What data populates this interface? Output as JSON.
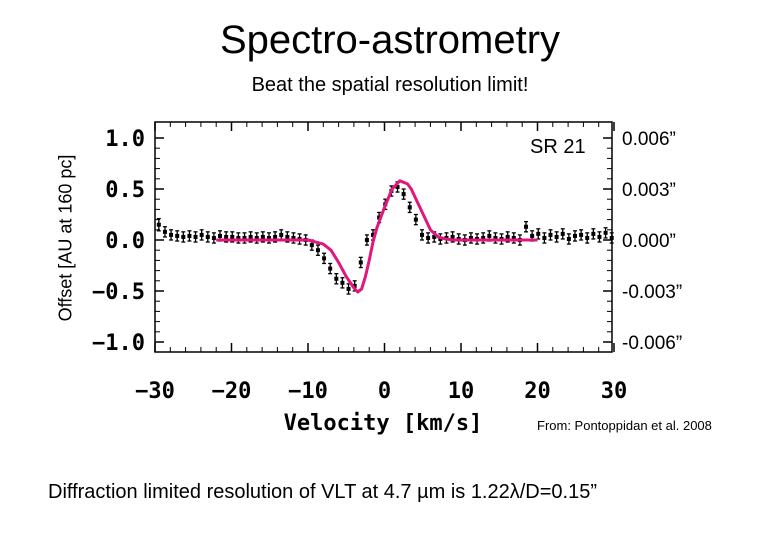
{
  "page": {
    "title": "Spectro-astrometry",
    "subtitle": "Beat the spatial resolution limit!",
    "ylabel": "Offset [AU at 160 pc]",
    "source": "From: Pontoppidan et al. 2008",
    "footer": "Diffraction limited resolution of VLT at 4.7 µm is 1.22λ/D=0.15”"
  },
  "colors": {
    "model": "#e0177c",
    "data": "#000000"
  },
  "chart_data": {
    "type": "scatter",
    "xlabel": "Velocity [km/s]",
    "ylabel": "",
    "xlim": [
      -30,
      30
    ],
    "ylim": [
      -1.1,
      1.1
    ],
    "x_ticks": [
      "−30",
      "−20",
      "−10",
      "0",
      "10",
      "20",
      "30"
    ],
    "x_tick_values": [
      -30,
      -20,
      -10,
      0,
      10,
      20,
      30
    ],
    "y_ticks": [
      "1.0",
      "0.5",
      "0.0",
      "−0.5",
      "−1.0"
    ],
    "y_tick_values": [
      1.0,
      0.5,
      0.0,
      -0.5,
      -1.0
    ],
    "right_ticks": [
      "0.006”",
      "0.003”",
      "0.000”",
      "-0.003”",
      "-0.006”"
    ],
    "right_tick_values": [
      1.0,
      0.5,
      0.0,
      -0.5,
      -1.0
    ],
    "annotation": "SR 21",
    "series": [
      {
        "type": "scatter-errorbar",
        "x": [
          -29.5,
          -28.7,
          -27.9,
          -27.1,
          -26.3,
          -25.5,
          -24.7,
          -23.9,
          -23.1,
          -22.3,
          -21.5,
          -20.7,
          -19.9,
          -19.1,
          -18.3,
          -17.5,
          -16.7,
          -15.9,
          -15.1,
          -14.3,
          -13.5,
          -12.7,
          -11.9,
          -11.1,
          -10.3,
          -9.5,
          -8.7,
          -7.9,
          -7.1,
          -6.3,
          -5.5,
          -4.7,
          -3.9,
          -3.1,
          -2.3,
          -1.5,
          -0.7,
          0.1,
          0.9,
          1.7,
          2.5,
          3.3,
          4.1,
          4.9,
          5.7,
          6.5,
          7.3,
          8.1,
          8.9,
          9.7,
          10.5,
          11.3,
          12.1,
          12.9,
          13.7,
          14.5,
          15.3,
          16.1,
          16.9,
          17.7,
          18.5,
          19.3,
          20.1,
          20.9,
          21.7,
          22.5,
          23.3,
          24.1,
          24.9,
          25.7,
          26.5,
          27.3,
          28.1,
          28.9,
          29.7
        ],
        "y": [
          0.15,
          0.08,
          0.05,
          0.04,
          0.03,
          0.04,
          0.03,
          0.05,
          0.03,
          0.02,
          0.04,
          0.03,
          0.03,
          0.02,
          0.02,
          0.03,
          0.02,
          0.03,
          0.02,
          0.03,
          0.05,
          0.03,
          0.02,
          0.01,
          0.0,
          -0.05,
          -0.1,
          -0.18,
          -0.28,
          -0.38,
          -0.42,
          -0.48,
          -0.45,
          -0.22,
          0.0,
          0.05,
          0.22,
          0.35,
          0.48,
          0.52,
          0.45,
          0.32,
          0.2,
          0.05,
          0.02,
          0.03,
          0.01,
          0.02,
          0.03,
          0.01,
          0.0,
          0.02,
          0.01,
          0.02,
          0.04,
          0.02,
          0.01,
          0.03,
          0.02,
          0.0,
          0.13,
          0.04,
          0.06,
          0.02,
          0.05,
          0.03,
          0.06,
          0.01,
          0.04,
          0.05,
          0.02,
          0.06,
          0.03,
          0.07,
          0.02
        ],
        "err": [
          0.06,
          0.05,
          0.05,
          0.05,
          0.05,
          0.05,
          0.05,
          0.05,
          0.05,
          0.05,
          0.05,
          0.05,
          0.05,
          0.05,
          0.05,
          0.05,
          0.05,
          0.05,
          0.05,
          0.05,
          0.05,
          0.05,
          0.05,
          0.05,
          0.05,
          0.05,
          0.05,
          0.05,
          0.05,
          0.05,
          0.05,
          0.05,
          0.05,
          0.05,
          0.05,
          0.05,
          0.05,
          0.05,
          0.05,
          0.05,
          0.05,
          0.05,
          0.05,
          0.05,
          0.05,
          0.05,
          0.05,
          0.05,
          0.05,
          0.05,
          0.05,
          0.05,
          0.05,
          0.05,
          0.05,
          0.05,
          0.05,
          0.05,
          0.05,
          0.05,
          0.05,
          0.05,
          0.05,
          0.05,
          0.05,
          0.05,
          0.05,
          0.05,
          0.05,
          0.05,
          0.05,
          0.05,
          0.05,
          0.05,
          0.05
        ]
      },
      {
        "type": "line",
        "x": [
          -22,
          -20,
          -18,
          -16,
          -14,
          -12,
          -10,
          -8,
          -7,
          -6,
          -5,
          -4,
          -3.5,
          -3,
          -2.5,
          -2,
          -1.5,
          -1,
          0,
          1,
          2,
          3,
          3.5,
          4,
          4.5,
          5,
          6,
          7,
          8,
          9,
          10,
          12,
          14,
          16,
          18,
          20
        ],
        "y": [
          0.0,
          0.0,
          0.0,
          0.0,
          0.0,
          0.0,
          0.0,
          -0.04,
          -0.1,
          -0.22,
          -0.36,
          -0.47,
          -0.51,
          -0.48,
          -0.36,
          -0.2,
          -0.02,
          0.12,
          0.32,
          0.5,
          0.58,
          0.55,
          0.5,
          0.42,
          0.34,
          0.26,
          0.1,
          0.03,
          0.01,
          0.0,
          0.0,
          0.0,
          0.0,
          0.0,
          0.0,
          0.0
        ]
      }
    ],
    "grid": false
  }
}
